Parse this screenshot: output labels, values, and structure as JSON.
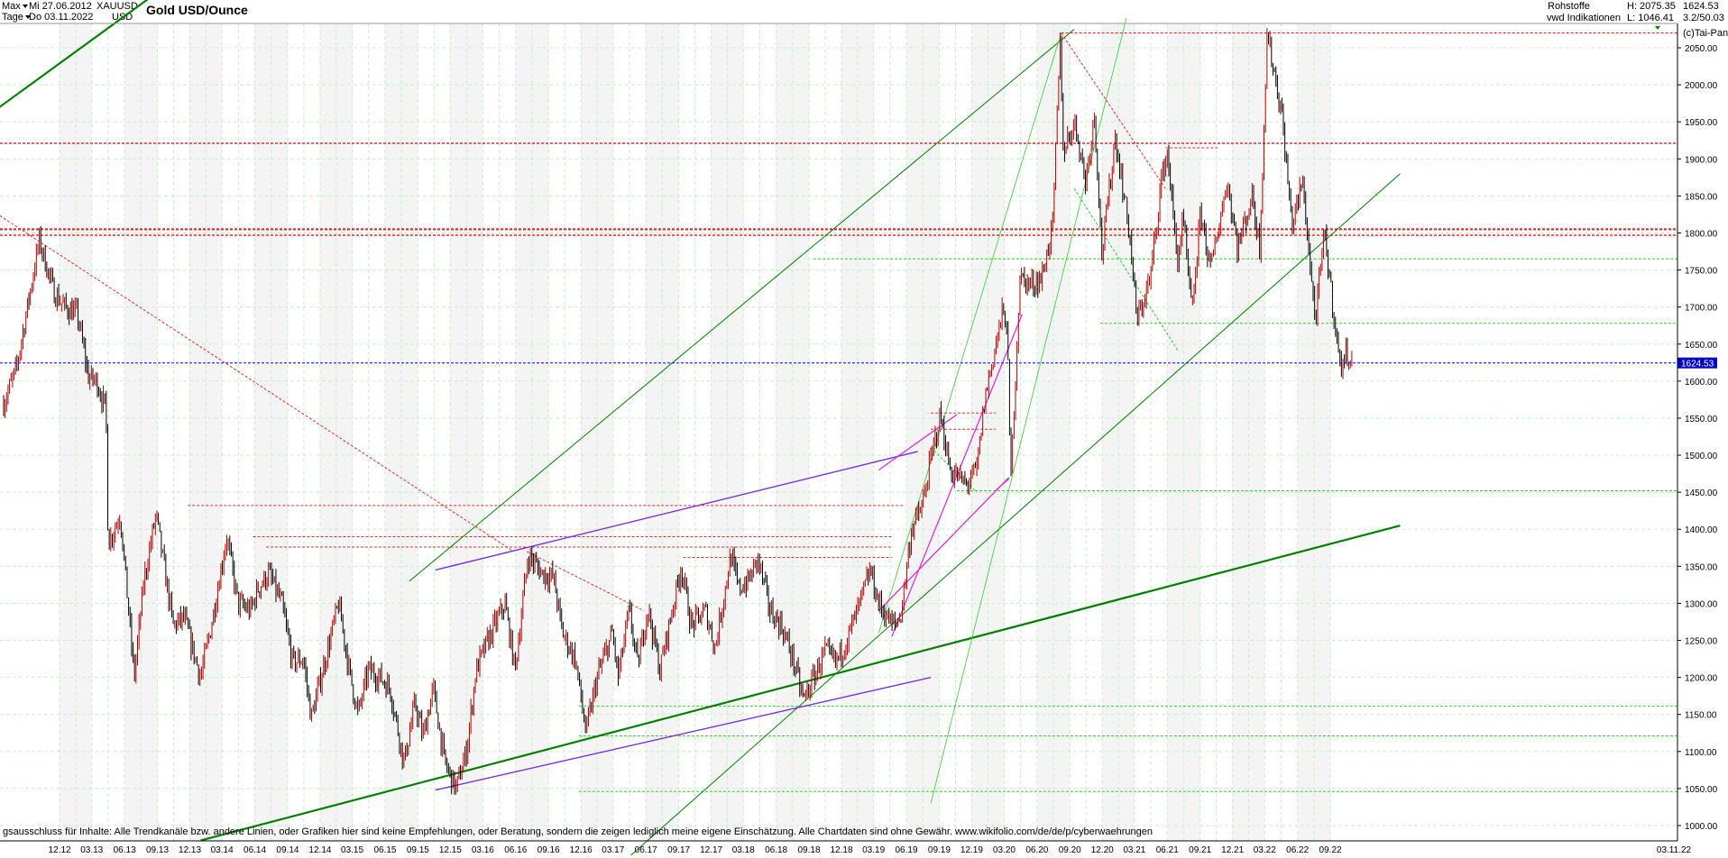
{
  "header": {
    "period_selector": "Max",
    "interval_selector": "Tage",
    "date_from": "Mi 27.06.2012",
    "date_to": "Do 03.11.2022",
    "symbol": "XAUUSD",
    "currency": "USD",
    "title": "Gold USD/Ounce",
    "category": "Rohstoffe",
    "source": "vwd Indikationen",
    "high_label": "H: 2075.35",
    "low_label": "L: 1046.41",
    "last_price": "1624.53",
    "scale_info": "3.2/50.03",
    "copyright": "(c)Tai-Pan"
  },
  "footer_note": "gsausschluss für Inhalte: Alle Trendkanäle bzw. andere Linien, oder Grafiken hier sind keine Empfehlungen, oder Beratung, sondern die zeigen lediglich meine eigene Einschätzung. Alle Chartdaten sind ohne Gewähr.  www.wikifolio.com/de/de/p/cyberwaehrungen",
  "colors": {
    "background": "#ffffff",
    "grid": "#c8f0c8",
    "band": "#f4f4f4",
    "candle_up": "#b00000",
    "candle_down": "#000000",
    "last_price_line": "#0000ff",
    "last_price_tag_bg": "#0000cc",
    "trend_green": "#008000",
    "trend_light_green": "#33cc33",
    "trend_purple": "#7a2be2",
    "trend_magenta": "#e020e0",
    "red_dotted": "#e03030"
  },
  "chart_data": {
    "type": "line",
    "title": "Gold USD/Ounce",
    "ylabel": "USD",
    "ylim": [
      1000,
      2075
    ],
    "yticks": [
      1000,
      1050,
      1100,
      1150,
      1200,
      1250,
      1300,
      1350,
      1400,
      1450,
      1500,
      1550,
      1600,
      1650,
      1700,
      1750,
      1800,
      1850,
      1900,
      1950,
      2000,
      2050
    ],
    "xtick_labels": [
      "12.12",
      "03.13",
      "06.13",
      "09.13",
      "12.13",
      "03.14",
      "06.14",
      "09.14",
      "12.14",
      "03.15",
      "06.15",
      "09.15",
      "12.15",
      "03.16",
      "06.16",
      "09.16",
      "12.16",
      "03.17",
      "06.17",
      "09.17",
      "12.17",
      "03.18",
      "06.18",
      "09.18",
      "12.18",
      "03.19",
      "06.19",
      "09.19",
      "12.19",
      "03.20",
      "06.20",
      "09.20",
      "12.20",
      "03.21",
      "06.21",
      "09.21",
      "12.21",
      "03.22",
      "06.22",
      "09.22",
      "03.11.22"
    ],
    "grid": true,
    "series": [
      {
        "x": [
          "2012-06-27",
          "2012-08-01",
          "2012-10-05",
          "2012-11-15",
          "2012-12-15",
          "2013-01-20",
          "2013-02-20",
          "2013-03-15",
          "2013-04-10",
          "2013-04-16",
          "2013-05-20",
          "2013-06-28",
          "2013-07-25",
          "2013-08-28",
          "2013-10-15",
          "2013-11-15",
          "2013-12-31",
          "2014-01-30",
          "2014-03-14",
          "2014-04-15",
          "2014-05-20",
          "2014-06-10",
          "2014-07-10",
          "2014-08-15",
          "2014-09-15",
          "2014-10-15",
          "2014-11-06",
          "2015-01-22",
          "2015-02-20",
          "2015-03-17",
          "2015-04-15",
          "2015-05-18",
          "2015-06-15",
          "2015-07-24",
          "2015-08-24",
          "2015-09-15",
          "2015-10-14",
          "2015-11-15",
          "2015-12-17",
          "2016-01-15",
          "2016-02-11",
          "2016-03-15",
          "2016-05-02",
          "2016-05-30",
          "2016-07-06",
          "2016-08-15",
          "2016-09-15",
          "2016-10-10",
          "2016-11-15",
          "2016-12-15",
          "2017-01-15",
          "2017-02-27",
          "2017-03-15",
          "2017-04-15",
          "2017-05-09",
          "2017-06-06",
          "2017-07-10",
          "2017-09-08",
          "2017-10-06",
          "2017-11-15",
          "2017-12-12",
          "2018-01-25",
          "2018-02-15",
          "2018-03-15",
          "2018-04-11",
          "2018-05-15",
          "2018-06-15",
          "2018-07-15",
          "2018-08-16",
          "2018-09-15",
          "2018-10-15",
          "2018-11-15",
          "2018-12-15",
          "2019-01-15",
          "2019-02-20",
          "2019-03-15",
          "2019-04-23",
          "2019-05-15",
          "2019-06-15",
          "2019-07-15",
          "2019-08-15",
          "2019-09-04",
          "2019-10-01",
          "2019-11-15",
          "2019-12-15",
          "2020-01-08",
          "2020-02-24",
          "2020-03-09",
          "2020-03-19",
          "2020-04-14",
          "2020-05-15",
          "2020-06-15",
          "2020-07-15",
          "2020-08-06",
          "2020-08-12",
          "2020-09-15",
          "2020-10-15",
          "2020-11-09",
          "2020-11-30",
          "2021-01-06",
          "2021-02-15",
          "2021-03-08",
          "2021-04-15",
          "2021-05-15",
          "2021-06-01",
          "2021-06-30",
          "2021-07-15",
          "2021-08-09",
          "2021-09-03",
          "2021-09-30",
          "2021-11-16",
          "2021-12-15",
          "2022-01-25",
          "2022-02-15",
          "2022-03-08",
          "2022-04-18",
          "2022-05-16",
          "2022-06-15",
          "2022-07-21",
          "2022-08-15",
          "2022-09-28",
          "2022-10-20",
          "2022-11-03"
        ],
        "y": [
          1570,
          1615,
          1790,
          1720,
          1700,
          1690,
          1605,
          1600,
          1560,
          1380,
          1420,
          1200,
          1330,
          1420,
          1270,
          1280,
          1200,
          1270,
          1390,
          1300,
          1290,
          1320,
          1340,
          1300,
          1220,
          1225,
          1145,
          1300,
          1210,
          1150,
          1210,
          1200,
          1185,
          1085,
          1165,
          1120,
          1185,
          1085,
          1050,
          1100,
          1210,
          1250,
          1300,
          1210,
          1365,
          1340,
          1335,
          1260,
          1225,
          1125,
          1200,
          1260,
          1200,
          1290,
          1215,
          1295,
          1210,
          1350,
          1270,
          1290,
          1240,
          1365,
          1320,
          1330,
          1360,
          1290,
          1270,
          1230,
          1170,
          1200,
          1235,
          1220,
          1250,
          1290,
          1345,
          1300,
          1270,
          1280,
          1400,
          1430,
          1510,
          1555,
          1480,
          1460,
          1480,
          1580,
          1690,
          1680,
          1460,
          1740,
          1730,
          1740,
          1810,
          2070,
          1910,
          1950,
          1870,
          1960,
          1770,
          1930,
          1800,
          1680,
          1740,
          1870,
          1910,
          1760,
          1820,
          1690,
          1830,
          1750,
          1870,
          1780,
          1850,
          1780,
          2070,
          1960,
          1810,
          1870,
          1680,
          1800,
          1620,
          1640,
          1625
        ]
      }
    ],
    "last_value": 1624.53,
    "high": 2075.35,
    "low": 1046.41
  }
}
